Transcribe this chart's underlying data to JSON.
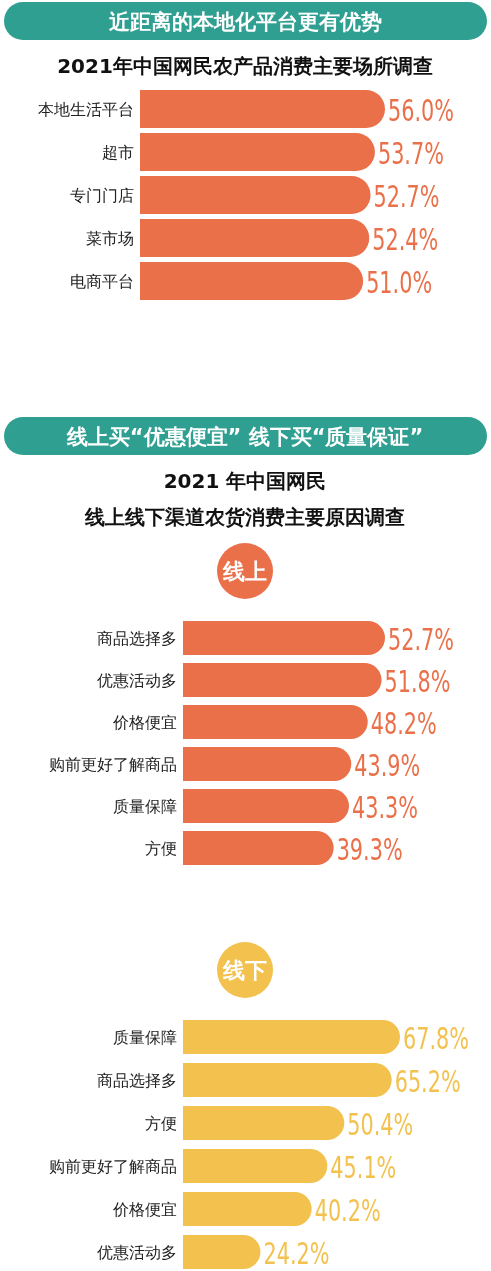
{
  "chart_data": [
    {
      "type": "bar",
      "orientation": "horizontal",
      "title": "近距离的本地化平台更有优势",
      "subtitle": "2021年中国网民农产品消费主要场所调查",
      "categories": [
        "本地生活平台",
        "超市",
        "专门门店",
        "菜市场",
        "电商平台"
      ],
      "color": "#ea7049",
      "values": [
        56.0,
        53.7,
        52.7,
        52.4,
        51.0
      ],
      "value_labels": [
        "56.0%",
        "53.7%",
        "52.7%",
        "52.4%",
        "51.0%"
      ]
    },
    {
      "type": "bar",
      "orientation": "horizontal",
      "title": "线上买“优惠便宜”  线下买“质量保证”",
      "subtitle": "2021 年中国网民",
      "annotations": [
        "线上线下渠道农货消费主要原因调查"
      ],
      "categories": [
        "商品选择多",
        "优惠活动多",
        "价格便宜",
        "购前更好了解商品",
        "质量保障",
        "方便"
      ],
      "series": [
        {
          "name": "线上",
          "color": "#ea7049",
          "values": [
            52.7,
            51.8,
            48.2,
            43.9,
            43.3,
            39.3
          ],
          "value_labels": [
            "52.7%",
            "51.8%",
            "48.2%",
            "43.9%",
            "43.3%",
            "39.3%"
          ]
        }
      ]
    },
    {
      "type": "bar",
      "orientation": "horizontal",
      "categories": [
        "质量保障",
        "商品选择多",
        "方便",
        "购前更好了解商品",
        "价格便宜",
        "优惠活动多"
      ],
      "series": [
        {
          "name": "线下",
          "color": "#f2c14e",
          "values": [
            67.8,
            65.2,
            50.4,
            45.1,
            40.2,
            24.2
          ],
          "value_labels": [
            "67.8%",
            "65.2%",
            "50.4%",
            "45.1%",
            "40.2%",
            "24.2%"
          ]
        }
      ]
    }
  ]
}
